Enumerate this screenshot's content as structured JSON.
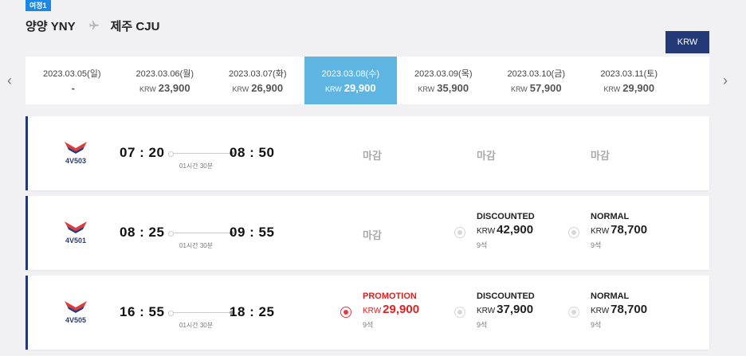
{
  "header": {
    "leg_badge": "여정1",
    "origin": "양양 YNY",
    "destination": "제주 CJU",
    "currency_button": "KRW"
  },
  "nav": {
    "prev": "‹",
    "next": "›"
  },
  "dates": [
    {
      "date": "2023.03.05(일)",
      "currency": "",
      "price": "-"
    },
    {
      "date": "2023.03.06(월)",
      "currency": "KRW",
      "price": "23,900"
    },
    {
      "date": "2023.03.07(화)",
      "currency": "KRW",
      "price": "26,900"
    },
    {
      "date": "2023.03.08(수)",
      "currency": "KRW",
      "price": "29,900",
      "selected": true
    },
    {
      "date": "2023.03.09(목)",
      "currency": "KRW",
      "price": "35,900"
    },
    {
      "date": "2023.03.10(금)",
      "currency": "KRW",
      "price": "57,900"
    },
    {
      "date": "2023.03.11(토)",
      "currency": "KRW",
      "price": "29,900"
    }
  ],
  "flights": [
    {
      "flight_no": "4V503",
      "dep": "07 : 20",
      "arr": "08 : 50",
      "duration": "01시간 30분",
      "promotion": {
        "closed": "마감"
      },
      "discounted": {
        "closed": "마감"
      },
      "normal": {
        "closed": "마감"
      }
    },
    {
      "flight_no": "4V501",
      "dep": "08 : 25",
      "arr": "09 : 55",
      "duration": "01시간 30분",
      "promotion": {
        "closed": "마감"
      },
      "discounted": {
        "label": "DISCOUNTED",
        "currency": "KRW",
        "price": "42,900",
        "seats": "9석"
      },
      "normal": {
        "label": "NORMAL",
        "currency": "KRW",
        "price": "78,700",
        "seats": "9석"
      }
    },
    {
      "flight_no": "4V505",
      "dep": "16 : 55",
      "arr": "18 : 25",
      "duration": "01시간 30분",
      "promotion": {
        "label": "PROMOTION",
        "currency": "KRW",
        "price": "29,900",
        "seats": "9석",
        "selected": true
      },
      "discounted": {
        "label": "DISCOUNTED",
        "currency": "KRW",
        "price": "37,900",
        "seats": "9석"
      },
      "normal": {
        "label": "NORMAL",
        "currency": "KRW",
        "price": "78,700",
        "seats": "9석"
      }
    }
  ],
  "icons": {
    "plane": "plane-icon",
    "airline_logo": "airline-logo-icon",
    "radio": "radio-icon"
  },
  "colors": {
    "accent": "#243a78",
    "selected_date": "#5eb5e2",
    "promo": "#e02020",
    "badge": "#1b87e6"
  }
}
